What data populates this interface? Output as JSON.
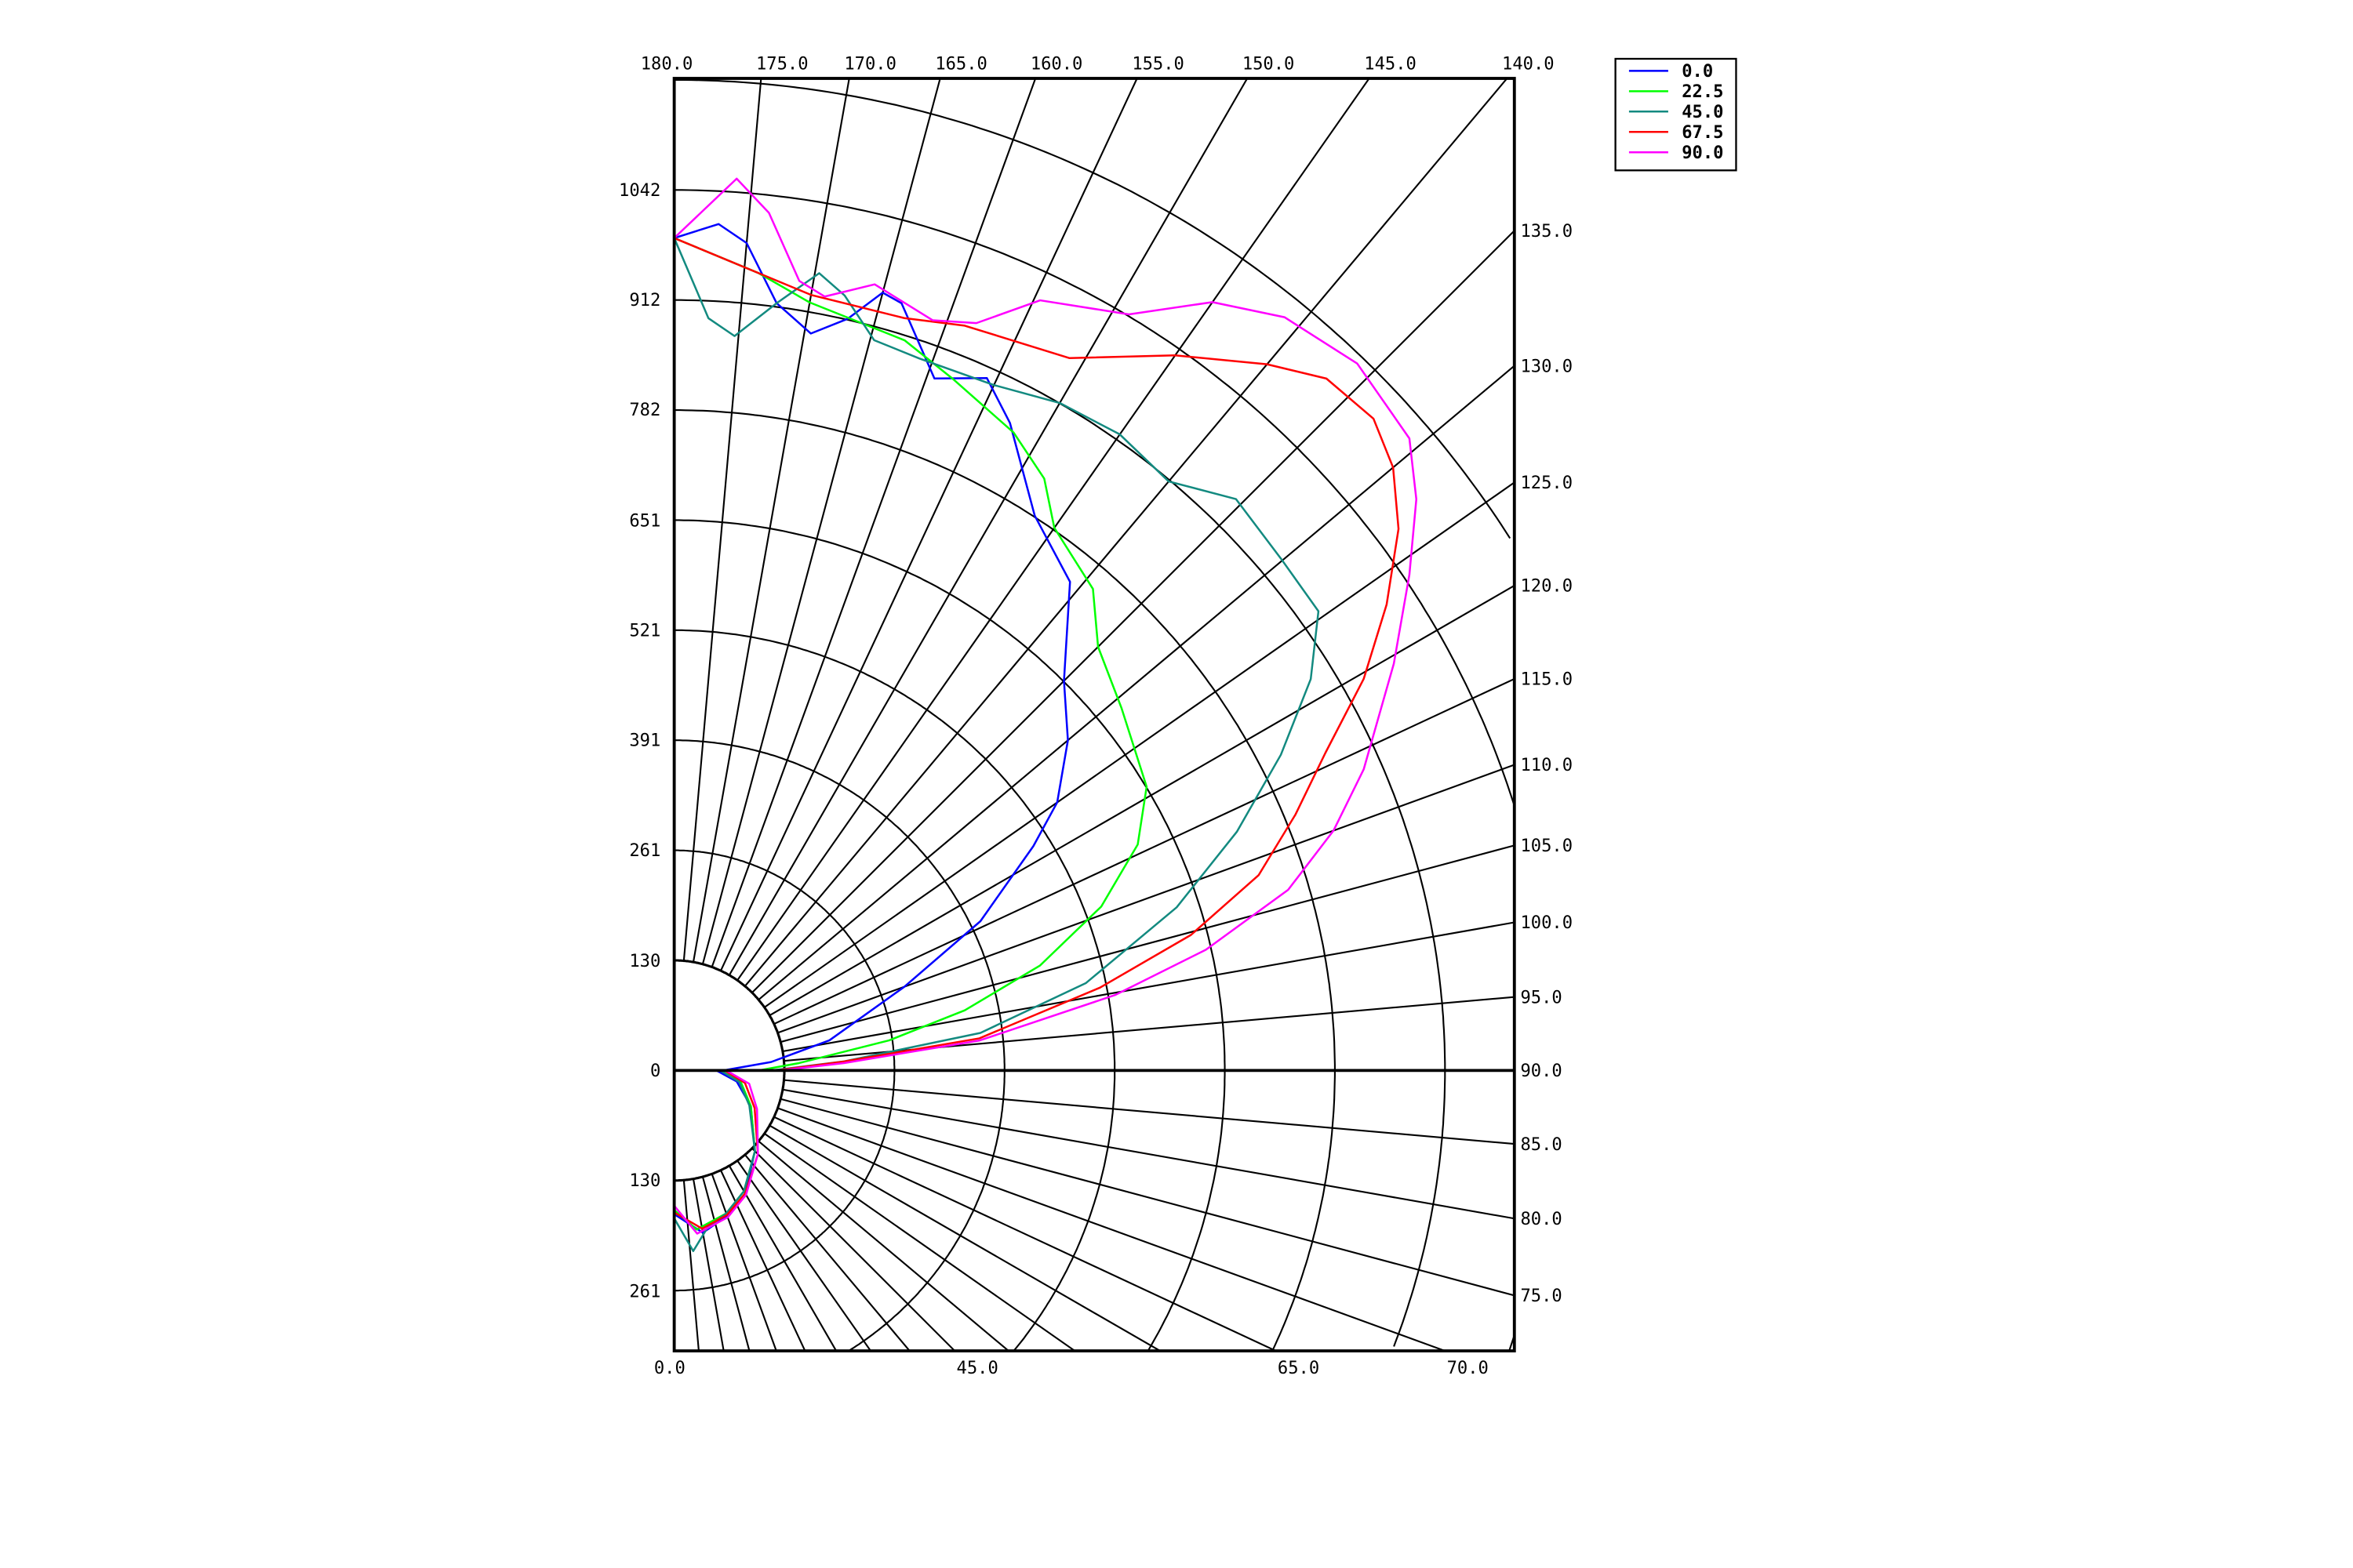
{
  "chart_data": {
    "type": "polar",
    "grid": true,
    "legend_placement": "top-right-outside",
    "radial_axis": {
      "max": 1042,
      "upper_ticks": [
        "1042",
        "912",
        "782",
        "651",
        "521",
        "391",
        "261",
        "130",
        "0"
      ],
      "lower_ticks": [
        "130",
        "261"
      ]
    },
    "angle_labels": {
      "top": [
        "180.0",
        "175.0",
        "170.0",
        "165.0",
        "160.0",
        "155.0",
        "150.0",
        "145.0",
        "140.0"
      ],
      "right": [
        "135.0",
        "130.0",
        "125.0",
        "120.0",
        "115.0",
        "110.0",
        "105.0",
        "100.0",
        "95.0",
        "90.0",
        "85.0",
        "80.0",
        "75.0"
      ],
      "bottom": [
        "0.0",
        "45.0",
        "65.0",
        "70.0"
      ]
    },
    "series": [
      {
        "name": "0.0",
        "color": "#0000ff",
        "points": [
          [
            0,
            170
          ],
          [
            10,
            195
          ],
          [
            20,
            183
          ],
          [
            30,
            168
          ],
          [
            45,
            135
          ],
          [
            65,
            100
          ],
          [
            80,
            75
          ],
          [
            89.9,
            50
          ],
          [
            90,
            58
          ],
          [
            95,
            115
          ],
          [
            101,
            187
          ],
          [
            110,
            290
          ],
          [
            116,
            403
          ],
          [
            122,
            501
          ],
          [
            125,
            553
          ],
          [
            130,
            608
          ],
          [
            135,
            652
          ],
          [
            141,
            744
          ],
          [
            147,
            783
          ],
          [
            152.6,
            863
          ],
          [
            155.7,
            899
          ],
          [
            159.4,
            875
          ],
          [
            163.5,
            947
          ],
          [
            165,
            953
          ],
          [
            167,
            913
          ],
          [
            169.5,
            887
          ],
          [
            172.4,
            916
          ],
          [
            175,
            983
          ],
          [
            177,
            1003
          ],
          [
            180,
            985
          ]
        ]
      },
      {
        "name": "22.5",
        "color": "#00ff00",
        "points": [
          [
            0,
            165
          ],
          [
            8,
            190
          ],
          [
            20,
            180
          ],
          [
            30,
            165
          ],
          [
            45,
            135
          ],
          [
            65,
            100
          ],
          [
            80,
            80
          ],
          [
            89.9,
            55
          ],
          [
            90,
            100
          ],
          [
            93.4,
            148
          ],
          [
            98,
            257
          ],
          [
            101.7,
            351
          ],
          [
            106,
            450
          ],
          [
            111,
            541
          ],
          [
            116,
            610
          ],
          [
            121,
            652
          ],
          [
            129,
            681
          ],
          [
            135,
            709
          ],
          [
            139,
            755
          ],
          [
            145,
            784
          ],
          [
            148,
            826
          ],
          [
            152,
            855
          ],
          [
            158,
            882
          ],
          [
            162.5,
            906
          ],
          [
            170,
            923
          ],
          [
            174,
            949
          ],
          [
            180,
            985
          ]
        ]
      },
      {
        "name": "45.0",
        "color": "#138a80",
        "points": [
          [
            0,
            175
          ],
          [
            6,
            215
          ],
          [
            12,
            190
          ],
          [
            20,
            180
          ],
          [
            30,
            165
          ],
          [
            45,
            135
          ],
          [
            65,
            98
          ],
          [
            80,
            78
          ],
          [
            89.9,
            55
          ],
          [
            90,
            115
          ],
          [
            93,
            200
          ],
          [
            97,
            365
          ],
          [
            102,
            498
          ],
          [
            108,
            625
          ],
          [
            113,
            723
          ],
          [
            117.5,
            809
          ],
          [
            121.6,
            884
          ],
          [
            125.5,
            936
          ],
          [
            130,
            939
          ],
          [
            135.5,
            948
          ],
          [
            140,
            910
          ],
          [
            145,
            919
          ],
          [
            150,
            912
          ],
          [
            155,
            895
          ],
          [
            161,
            891
          ],
          [
            164.7,
            896
          ],
          [
            167.6,
            939
          ],
          [
            169.7,
            959
          ],
          [
            172.4,
            916
          ],
          [
            175.3,
            872
          ],
          [
            177.4,
            891
          ],
          [
            180,
            985
          ]
        ]
      },
      {
        "name": "67.5",
        "color": "#ff0000",
        "points": [
          [
            0,
            168
          ],
          [
            10,
            190
          ],
          [
            20,
            182
          ],
          [
            30,
            168
          ],
          [
            45,
            140
          ],
          [
            65,
            105
          ],
          [
            80,
            85
          ],
          [
            89.9,
            60
          ],
          [
            90,
            120
          ],
          [
            93,
            201
          ],
          [
            96,
            363
          ],
          [
            101,
            513
          ],
          [
            104.7,
            632
          ],
          [
            108.5,
            729
          ],
          [
            112.4,
            795
          ],
          [
            116,
            857
          ],
          [
            119.6,
            938
          ],
          [
            123.2,
            1007
          ],
          [
            126.8,
            1070
          ],
          [
            130,
            1110
          ],
          [
            133,
            1131
          ],
          [
            136.7,
            1125
          ],
          [
            140,
            1091
          ],
          [
            145,
            1033
          ],
          [
            151,
            964
          ],
          [
            158.7,
            946
          ],
          [
            163,
            931
          ],
          [
            170,
            932
          ],
          [
            180,
            985
          ]
        ]
      },
      {
        "name": "90.0",
        "color": "#ff00ff",
        "points": [
          [
            0,
            160
          ],
          [
            8,
            195
          ],
          [
            20,
            185
          ],
          [
            30,
            170
          ],
          [
            45,
            140
          ],
          [
            65,
            108
          ],
          [
            80,
            90
          ],
          [
            89.9,
            62
          ],
          [
            90,
            125
          ],
          [
            92.5,
            201
          ],
          [
            95.6,
            363
          ],
          [
            99.7,
            529
          ],
          [
            102.8,
            645
          ],
          [
            106.4,
            757
          ],
          [
            110,
            830
          ],
          [
            113.6,
            890
          ],
          [
            119.5,
            978
          ],
          [
            124,
            1049
          ],
          [
            127.6,
            1108
          ],
          [
            130.7,
            1147
          ],
          [
            136,
            1163
          ],
          [
            141,
            1147
          ],
          [
            145,
            1110
          ],
          [
            149,
            1044
          ],
          [
            154.6,
            1009
          ],
          [
            158,
            954
          ],
          [
            161,
            939
          ],
          [
            165.7,
            960
          ],
          [
            169,
            933
          ],
          [
            171,
            946
          ],
          [
            173.7,
            1021
          ],
          [
            176,
            1058
          ],
          [
            180,
            985
          ]
        ]
      }
    ]
  }
}
